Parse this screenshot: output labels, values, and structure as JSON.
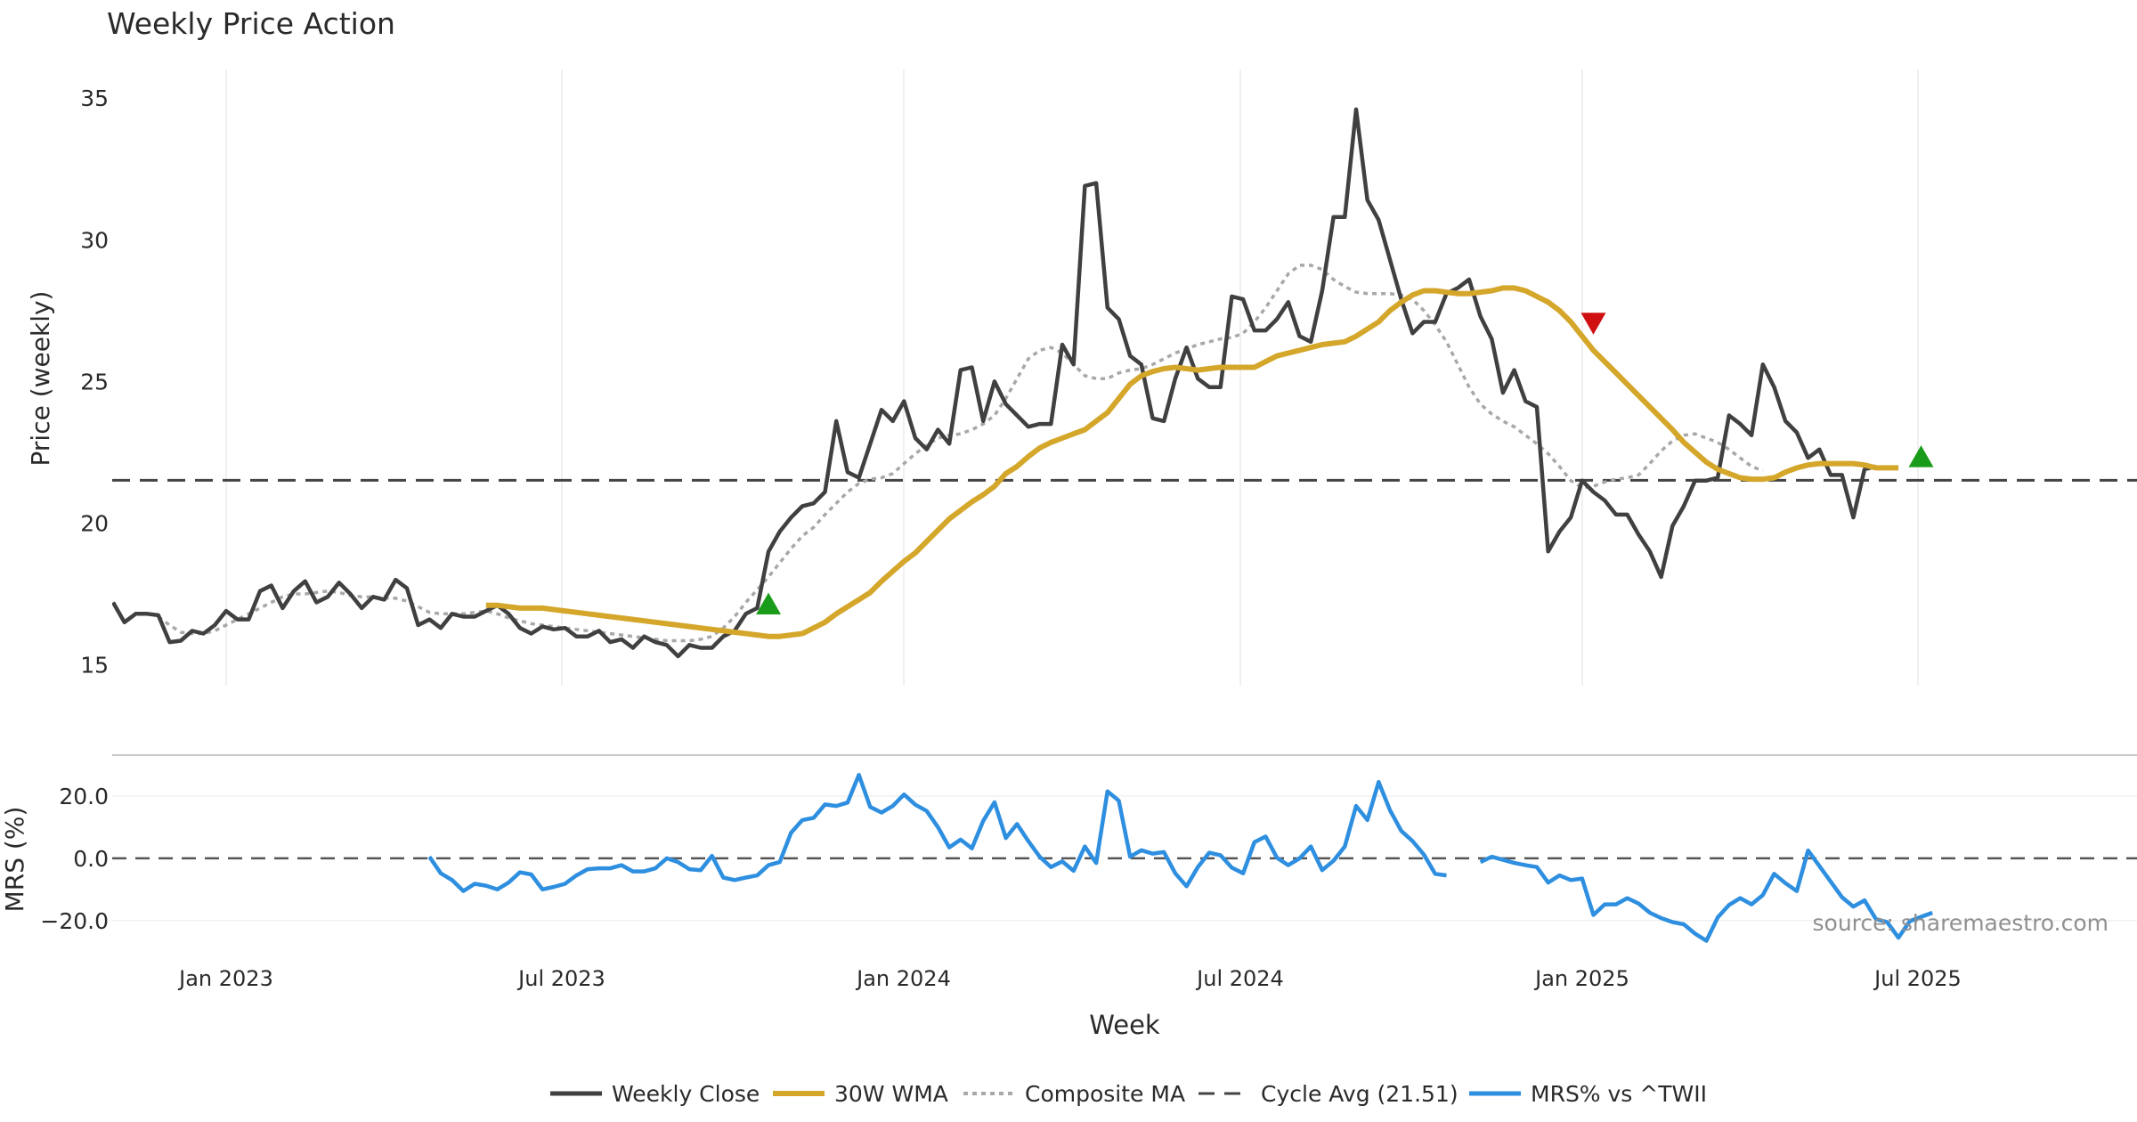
{
  "chart_data": [
    {
      "type": "line",
      "title": "Weekly Price Action",
      "xlabel": "Week",
      "ylabel": "Price (weekly)",
      "ylim": [
        14.2,
        36.2
      ],
      "yticks": [
        15,
        20,
        25,
        30,
        35
      ],
      "xticks": [
        "Jan 2023",
        "Jul 2023",
        "Jan 2024",
        "Jul 2024",
        "Jan 2025",
        "Jul 2025"
      ],
      "x_week_range": [
        0,
        181
      ],
      "cycle_avg": 21.51,
      "series": [
        {
          "name": "Weekly Close",
          "color": "#404040",
          "values": [
            17.2,
            16.5,
            16.8,
            16.8,
            16.75,
            15.8,
            15.85,
            16.2,
            16.1,
            16.4,
            16.9,
            16.6,
            16.6,
            17.6,
            17.8,
            17.0,
            17.6,
            17.95,
            17.2,
            17.4,
            17.9,
            17.5,
            17.0,
            17.4,
            17.3,
            18.0,
            17.7,
            16.4,
            16.6,
            16.3,
            16.8,
            16.7,
            16.7,
            16.9,
            17.1,
            16.8,
            16.3,
            16.1,
            16.35,
            16.25,
            16.3,
            16.0,
            16.0,
            16.2,
            15.8,
            15.9,
            15.6,
            16.0,
            15.8,
            15.7,
            15.3,
            15.7,
            15.6,
            15.6,
            16.0,
            16.2,
            16.8,
            17.0,
            19.0,
            19.7,
            20.2,
            20.6,
            20.7,
            21.1,
            23.6,
            21.8,
            21.6,
            22.8,
            24.0,
            23.6,
            24.3,
            23.0,
            22.6,
            23.3,
            22.8,
            25.4,
            25.5,
            23.6,
            25.0,
            24.2,
            23.8,
            23.4,
            23.5,
            23.5,
            26.3,
            25.6,
            31.9,
            32.0,
            27.6,
            27.2,
            25.9,
            25.6,
            23.7,
            23.6,
            25.1,
            26.2,
            25.1,
            24.8,
            24.8,
            28.0,
            27.9,
            26.8,
            26.8,
            27.2,
            27.8,
            26.6,
            26.4,
            28.2,
            30.8,
            30.8,
            34.6,
            31.4,
            30.7,
            29.3,
            27.9,
            26.7,
            27.1,
            27.1,
            28.1,
            28.3,
            28.6,
            27.3,
            26.5,
            24.6,
            25.4,
            24.3,
            24.1,
            19.0,
            19.7,
            20.2,
            21.5,
            21.1,
            20.8,
            20.3,
            20.3,
            19.6,
            19.0,
            18.1,
            19.9,
            20.6,
            21.5,
            21.5,
            21.6,
            23.8,
            23.5,
            23.1,
            25.6,
            24.8,
            23.6,
            23.2,
            22.3,
            22.6,
            21.7,
            21.7,
            20.2,
            21.9,
            22.0
          ]
        },
        {
          "name": "30W WMA",
          "color": "#d4a62a",
          "start_week": 33,
          "values": [
            17.1,
            17.1,
            17.05,
            17.0,
            17.0,
            17.0,
            16.95,
            16.9,
            16.85,
            16.8,
            16.75,
            16.7,
            16.65,
            16.6,
            16.55,
            16.5,
            16.45,
            16.4,
            16.35,
            16.3,
            16.25,
            16.2,
            16.15,
            16.1,
            16.05,
            16.0,
            16.0,
            16.05,
            16.1,
            16.3,
            16.5,
            16.8,
            17.05,
            17.3,
            17.55,
            17.95,
            18.3,
            18.65,
            18.95,
            19.35,
            19.75,
            20.15,
            20.45,
            20.75,
            21.0,
            21.3,
            21.75,
            22.0,
            22.35,
            22.65,
            22.85,
            23.0,
            23.15,
            23.3,
            23.6,
            23.9,
            24.4,
            24.9,
            25.2,
            25.35,
            25.45,
            25.5,
            25.45,
            25.4,
            25.45,
            25.5,
            25.5,
            25.5,
            25.5,
            25.7,
            25.9,
            26.0,
            26.1,
            26.2,
            26.3,
            26.35,
            26.4,
            26.6,
            26.85,
            27.1,
            27.5,
            27.8,
            28.05,
            28.2,
            28.2,
            28.15,
            28.1,
            28.1,
            28.15,
            28.2,
            28.3,
            28.3,
            28.2,
            28.0,
            27.8,
            27.5,
            27.1,
            26.6,
            26.1,
            25.7,
            25.3,
            24.9,
            24.5,
            24.1,
            23.7,
            23.3,
            22.85,
            22.5,
            22.15,
            21.9,
            21.75,
            21.6,
            21.55,
            21.55,
            21.6,
            21.8,
            21.95,
            22.05,
            22.1,
            22.1,
            22.1,
            22.1,
            22.05,
            21.95,
            21.95,
            21.95
          ]
        },
        {
          "name": "Composite MA",
          "color": "#a8a8a8",
          "start_week": 4,
          "values": [
            16.7,
            16.4,
            16.15,
            16.1,
            16.1,
            16.2,
            16.4,
            16.6,
            16.8,
            17.0,
            17.2,
            17.4,
            17.5,
            17.5,
            17.55,
            17.6,
            17.55,
            17.45,
            17.4,
            17.4,
            17.35,
            17.35,
            17.25,
            17.05,
            16.85,
            16.8,
            16.8,
            16.8,
            16.85,
            16.9,
            16.8,
            16.65,
            16.55,
            16.45,
            16.4,
            16.35,
            16.3,
            16.25,
            16.2,
            16.15,
            16.1,
            16.05,
            16.0,
            15.95,
            15.9,
            15.85,
            15.85,
            15.85,
            15.9,
            16.0,
            16.3,
            16.7,
            17.2,
            17.65,
            18.1,
            18.6,
            19.1,
            19.55,
            19.85,
            20.3,
            20.7,
            21.1,
            21.4,
            21.55,
            21.6,
            21.75,
            22.1,
            22.45,
            22.75,
            23.0,
            23.1,
            23.15,
            23.3,
            23.5,
            23.8,
            24.4,
            25.1,
            25.8,
            26.1,
            26.2,
            26.0,
            25.6,
            25.2,
            25.1,
            25.1,
            25.3,
            25.4,
            25.45,
            25.6,
            25.8,
            26.0,
            26.15,
            26.3,
            26.4,
            26.5,
            26.55,
            26.7,
            27.1,
            27.6,
            28.2,
            28.8,
            29.1,
            29.1,
            28.95,
            28.6,
            28.35,
            28.15,
            28.1,
            28.1,
            28.1,
            28.05,
            27.9,
            27.5,
            27.0,
            26.4,
            25.6,
            24.8,
            24.2,
            23.85,
            23.6,
            23.4,
            23.1,
            22.8,
            22.45,
            22.0,
            21.5,
            21.25,
            21.3,
            21.45,
            21.55,
            21.6,
            21.7,
            22.1,
            22.55,
            22.9,
            23.1,
            23.15,
            23.0,
            22.85,
            22.6,
            22.3,
            22.0,
            21.85
          ]
        }
      ],
      "markers": [
        {
          "name": "Buy signal",
          "week": 58,
          "value": 17.15,
          "shape": "triangle-up",
          "color": "#1a9c1a"
        },
        {
          "name": "Sell signal",
          "week": 131,
          "value": 27.05,
          "shape": "triangle-down",
          "color": "#d01010"
        },
        {
          "name": "Buy signal",
          "week": 160,
          "value": 22.35,
          "shape": "triangle-up",
          "color": "#1a9c1a"
        }
      ]
    },
    {
      "type": "line",
      "ylabel": "MRS (%)",
      "ylim": [
        -29.5,
        32
      ],
      "yticks": [
        "20.0",
        "0.0",
        "−20.0"
      ],
      "source": "source: sharemaestro.com",
      "series": [
        {
          "name": "MRS% vs ^TWII",
          "color": "#2e8fe0",
          "start_week": 28,
          "values": [
            0.5,
            -4.8,
            -7,
            -10.5,
            -8.2,
            -8.8,
            -10,
            -7.8,
            -4.5,
            -5.2,
            -10,
            -9.2,
            -8.2,
            -5.5,
            -3.5,
            -3.2,
            -3.2,
            -2.2,
            -4.2,
            -4.2,
            -3.2,
            0,
            -1.2,
            -3.5,
            -3.8,
            0.8,
            -6.2,
            -7,
            -6.2,
            -5.5,
            -2.2,
            -1.2,
            8.2,
            12.3,
            13,
            17.3,
            16.8,
            17.9,
            26.8,
            16.5,
            14.7,
            16.8,
            20.5,
            17.2,
            15.2,
            10,
            3.5,
            6,
            3.2,
            12,
            18,
            6.5,
            11,
            5.5,
            0.5,
            -2.8,
            -1,
            -4,
            3.8,
            -1.5,
            21.5,
            18.5,
            0.5,
            2.6,
            1.5,
            2,
            -4.8,
            -9,
            -2.8,
            1.8,
            1,
            -3,
            -4.8,
            5.2,
            7,
            0.2,
            -2.2,
            0,
            3.8,
            -3.8,
            -0.8,
            3.8,
            16.8,
            12.3,
            24.5,
            15.5,
            8.8,
            5.5,
            1.2,
            -5,
            -5.5,
            null,
            null,
            -1.2,
            0.5,
            -0.5,
            -1.5,
            -2.2,
            -2.8,
            -7.8,
            -5.5,
            -7,
            -6.5,
            -18.2,
            -14.8,
            -14.8,
            -12.8,
            -14.5,
            -17.5,
            -19.2,
            -20.5,
            -21.2,
            -24.2,
            -26.5,
            -19,
            -15,
            -12.8,
            -14.8,
            -11.8,
            -5,
            -8,
            -10.5,
            2.5,
            -2.5,
            -7.5,
            -12.5,
            -15.5,
            -13.5,
            -19.5,
            -20.5,
            -25.5,
            -20.2,
            -18.8,
            -17.5
          ]
        },
        {
          "name": "Zero line",
          "value": 0
        }
      ]
    }
  ],
  "legend": [
    {
      "label": "Weekly Close",
      "style": "solid"
    },
    {
      "label": "30W WMA",
      "style": "solid"
    },
    {
      "label": "Composite MA",
      "style": "dotted"
    },
    {
      "label": "Cycle Avg (21.51)",
      "style": "dashed"
    },
    {
      "label": "MRS% vs ^TWII",
      "style": "solid"
    }
  ]
}
